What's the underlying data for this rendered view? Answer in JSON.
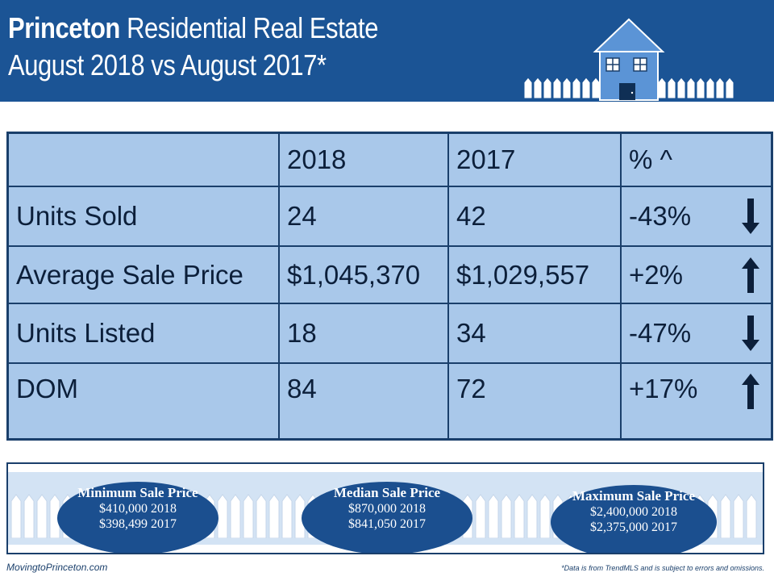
{
  "header": {
    "title_bold": "Princeton",
    "title_rest": " Residential Real Estate",
    "subtitle": "August 2018 vs August 2017*",
    "background_color": "#1b5495",
    "house_icon": "house-icon"
  },
  "table": {
    "columns": [
      "",
      "2018",
      "2017",
      "% ^"
    ],
    "rows": [
      {
        "label": "Units Sold",
        "v2018": "24",
        "v2017": "42",
        "change": "-43%",
        "trend": "down"
      },
      {
        "label": "Average Sale Price",
        "v2018": "$1,045,370",
        "v2017": "$1,029,557",
        "change": "+2%",
        "trend": "up"
      },
      {
        "label": "Units Listed",
        "v2018": "18",
        "v2017": "34",
        "change": "-47%",
        "trend": "down"
      },
      {
        "label": "DOM",
        "v2018": "84",
        "v2017": "72",
        "change": "+17%",
        "trend": "up"
      }
    ],
    "cell_color": "#a9c8ea",
    "border_color": "#1a3f6b"
  },
  "summary": {
    "min": {
      "title": "Minimum Sale Price",
      "line1": "$410,000 2018",
      "line2": "$398,499 2017"
    },
    "median": {
      "title": "Median Sale Price",
      "line1": "$870,000 2018",
      "line2": "$841,050 2017"
    },
    "max": {
      "title": "Maximum Sale Price",
      "line1": "$2,400,000  2018",
      "line2": "$2,375,000 2017"
    },
    "oval_color": "#1b4f8f"
  },
  "footer": {
    "site": "MovingtoPrinceton.com",
    "disclaimer": "*Data is from TrendMLS and is subject to errors and omissions."
  }
}
